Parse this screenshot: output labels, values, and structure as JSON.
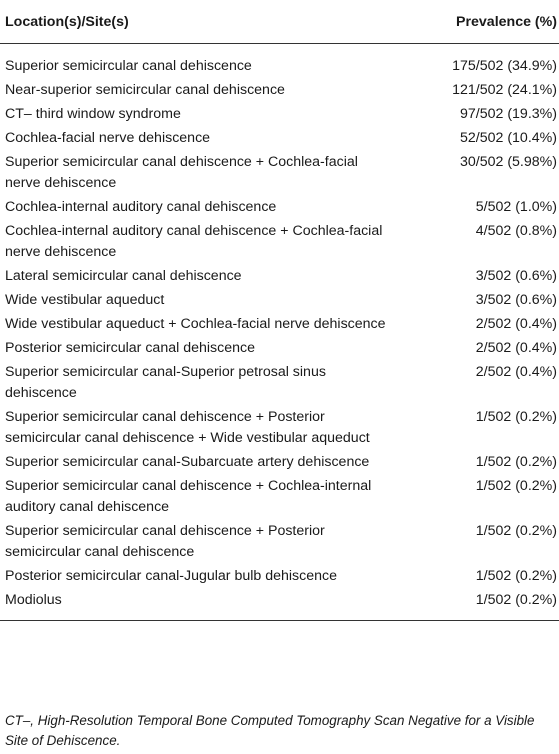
{
  "table": {
    "headers": {
      "site": "Location(s)/Site(s)",
      "prevalence": "Prevalence (%)"
    },
    "rows": [
      {
        "site": "Superior semicircular canal dehiscence",
        "prevalence": "175/502 (34.9%)"
      },
      {
        "site": "Near-superior semicircular canal dehiscence",
        "prevalence": "121/502 (24.1%)"
      },
      {
        "site": "CT– third window syndrome",
        "prevalence": "97/502 (19.3%)"
      },
      {
        "site": "Cochlea-facial nerve dehiscence",
        "prevalence": "52/502 (10.4%)"
      },
      {
        "site": "Superior semicircular canal dehiscence + Cochlea-facial nerve dehiscence",
        "prevalence": "30/502 (5.98%)"
      },
      {
        "site": "Cochlea-internal auditory canal dehiscence",
        "prevalence": "5/502 (1.0%)"
      },
      {
        "site": "Cochlea-internal auditory canal dehiscence + Cochlea-facial nerve dehiscence",
        "prevalence": "4/502 (0.8%)"
      },
      {
        "site": "Lateral semicircular canal dehiscence",
        "prevalence": "3/502 (0.6%)"
      },
      {
        "site": "Wide vestibular aqueduct",
        "prevalence": "3/502 (0.6%)"
      },
      {
        "site": "Wide vestibular aqueduct + Cochlea-facial nerve dehiscence",
        "prevalence": "2/502 (0.4%)"
      },
      {
        "site": "Posterior semicircular canal dehiscence",
        "prevalence": "2/502 (0.4%)"
      },
      {
        "site": "Superior semicircular canal-Superior petrosal sinus dehiscence",
        "prevalence": "2/502 (0.4%)"
      },
      {
        "site": "Superior semicircular canal dehiscence + Posterior semicircular canal dehiscence + Wide vestibular aqueduct",
        "prevalence": "1/502 (0.2%)"
      },
      {
        "site": "Superior semicircular canal-Subarcuate artery dehiscence",
        "prevalence": "1/502 (0.2%)"
      },
      {
        "site": "Superior semicircular canal dehiscence + Cochlea-internal auditory canal dehiscence",
        "prevalence": "1/502 (0.2%)"
      },
      {
        "site": "Superior semicircular canal dehiscence + Posterior semicircular canal dehiscence",
        "prevalence": "1/502 (0.2%)"
      },
      {
        "site": "Posterior semicircular canal-Jugular bulb dehiscence",
        "prevalence": "1/502 (0.2%)"
      },
      {
        "site": "Modiolus",
        "prevalence": "1/502 (0.2%)"
      }
    ]
  },
  "footnote": "CT–, High-Resolution Temporal Bone Computed Tomography Scan Negative for a Visible Site of Dehiscence."
}
